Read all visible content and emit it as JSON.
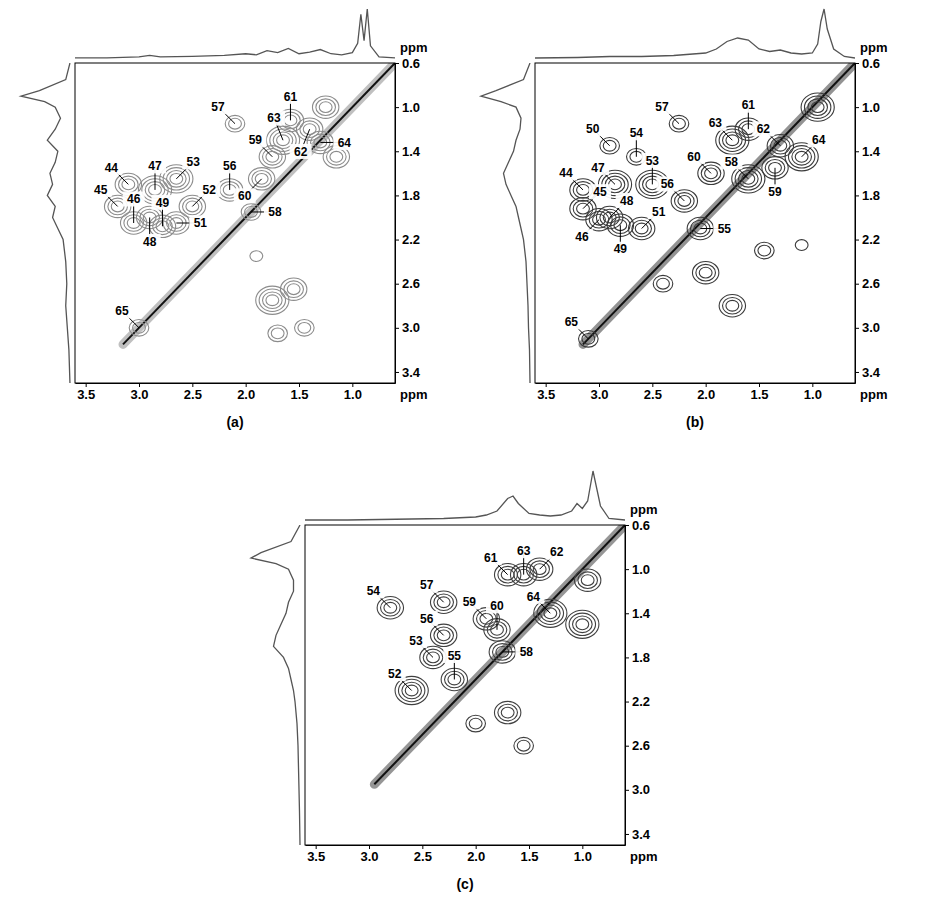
{
  "chart_data": [
    {
      "type": "contour",
      "label": "(a)",
      "x_label": "ppm",
      "y_label": "ppm",
      "xlim": [
        3.6,
        0.6
      ],
      "ylim": [
        0.6,
        3.5
      ],
      "xticks": [
        3.5,
        {
          "value": 3,
          "label": "3.0"
        },
        2.5,
        {
          "value": 2,
          "label": "2.0"
        },
        1.5,
        {
          "value": 1,
          "label": "1.0"
        }
      ],
      "yticks": [
        0.6,
        {
          "value": 1,
          "label": "1.0"
        },
        1.4,
        1.8,
        2.2,
        2.6,
        {
          "value": 3,
          "label": "3.0"
        },
        3.4
      ],
      "color": "#8c8c8c",
      "diagonal": [
        3.15,
        0.6
      ],
      "peaks": [
        {
          "label": "44",
          "x": 3.1,
          "y": 1.7,
          "intensity": 3
        },
        {
          "label": "45",
          "x": 3.2,
          "y": 1.9,
          "intensity": 3
        },
        {
          "label": "46",
          "x": 3.05,
          "y": 2.05,
          "intensity": 3
        },
        {
          "label": "47",
          "x": 2.85,
          "y": 1.75,
          "intensity": 4
        },
        {
          "label": "48",
          "x": 2.9,
          "y": 2.0,
          "intensity": 3
        },
        {
          "label": "49",
          "x": 2.78,
          "y": 2.08,
          "intensity": 3
        },
        {
          "label": "53",
          "x": 2.65,
          "y": 1.65,
          "intensity": 4
        },
        {
          "label": "52",
          "x": 2.5,
          "y": 1.9,
          "intensity": 3
        },
        {
          "label": "51",
          "x": 2.65,
          "y": 2.05,
          "intensity": 3
        },
        {
          "label": "57",
          "x": 2.1,
          "y": 1.15,
          "intensity": 2
        },
        {
          "label": "56",
          "x": 2.15,
          "y": 1.75,
          "intensity": 3
        },
        {
          "label": "60",
          "x": 1.85,
          "y": 1.65,
          "intensity": 3
        },
        {
          "label": "59",
          "x": 1.75,
          "y": 1.45,
          "intensity": 3
        },
        {
          "label": "58",
          "x": 1.95,
          "y": 1.95,
          "intensity": 2
        },
        {
          "label": "63",
          "x": 1.65,
          "y": 1.3,
          "intensity": 4
        },
        {
          "label": "61",
          "x": 1.58,
          "y": 1.12,
          "intensity": 3
        },
        {
          "label": "62",
          "x": 1.4,
          "y": 1.2,
          "intensity": 3
        },
        {
          "label": "64",
          "x": 1.3,
          "y": 1.32,
          "intensity": 3
        },
        {
          "label": "65",
          "x": 3.0,
          "y": 3.0,
          "intensity": 2
        }
      ],
      "unlabeled_peaks": [
        {
          "x": 1.75,
          "y": 2.75,
          "intensity": 4
        },
        {
          "x": 1.55,
          "y": 2.65,
          "intensity": 3
        },
        {
          "x": 1.7,
          "y": 3.05,
          "intensity": 2
        },
        {
          "x": 1.45,
          "y": 3.0,
          "intensity": 2
        },
        {
          "x": 1.25,
          "y": 1.0,
          "intensity": 3
        },
        {
          "x": 1.15,
          "y": 1.45,
          "intensity": 3
        },
        {
          "x": 1.9,
          "y": 2.35,
          "intensity": 1
        }
      ],
      "projection_top": {
        "x": [
          3.6,
          3.3,
          3.0,
          2.9,
          2.8,
          2.5,
          2.2,
          2.0,
          1.9,
          1.8,
          1.7,
          1.6,
          1.5,
          1.4,
          1.3,
          1.2,
          1.1,
          1.0,
          0.95,
          0.92,
          0.89,
          0.86,
          0.83,
          0.75,
          0.6
        ],
        "values": [
          0.02,
          0.02,
          0.04,
          0.07,
          0.04,
          0.05,
          0.07,
          0.1,
          0.08,
          0.16,
          0.12,
          0.2,
          0.1,
          0.13,
          0.18,
          0.1,
          0.08,
          0.12,
          0.3,
          0.85,
          0.35,
          0.95,
          0.25,
          0.04,
          0.02
        ]
      },
      "projection_left": {
        "y": [
          0.6,
          0.75,
          0.85,
          0.9,
          0.95,
          1.0,
          1.1,
          1.2,
          1.3,
          1.4,
          1.5,
          1.6,
          1.7,
          1.8,
          1.9,
          2.0,
          2.1,
          2.2,
          2.4,
          2.6,
          2.8,
          3.0,
          3.2,
          3.5
        ],
        "values": [
          0.02,
          0.1,
          0.6,
          0.95,
          0.5,
          0.3,
          0.2,
          0.3,
          0.45,
          0.25,
          0.3,
          0.4,
          0.35,
          0.45,
          0.3,
          0.35,
          0.25,
          0.15,
          0.1,
          0.08,
          0.1,
          0.07,
          0.04,
          0.02
        ]
      }
    },
    {
      "type": "contour",
      "label": "(b)",
      "x_label": "ppm",
      "y_label": "ppm",
      "xlim": [
        3.6,
        0.6
      ],
      "ylim": [
        0.6,
        3.5
      ],
      "xticks": [
        3.5,
        {
          "value": 3,
          "label": "3.0"
        },
        2.5,
        {
          "value": 2,
          "label": "2.0"
        },
        1.5,
        {
          "value": 1,
          "label": "1.0"
        }
      ],
      "yticks": [
        0.6,
        {
          "value": 1,
          "label": "1.0"
        },
        1.4,
        1.8,
        2.2,
        2.6,
        {
          "value": 3,
          "label": "3.0"
        },
        3.4
      ],
      "color": "#3a3a3a",
      "diagonal": [
        3.15,
        0.6
      ],
      "peaks": [
        {
          "label": "50",
          "x": 2.9,
          "y": 1.35,
          "intensity": 2
        },
        {
          "label": "44",
          "x": 3.15,
          "y": 1.75,
          "intensity": 3
        },
        {
          "label": "45",
          "x": 3.15,
          "y": 1.92,
          "intensity": 3
        },
        {
          "label": "46",
          "x": 3.0,
          "y": 2.02,
          "intensity": 3
        },
        {
          "label": "47",
          "x": 2.85,
          "y": 1.7,
          "intensity": 4
        },
        {
          "label": "48",
          "x": 2.9,
          "y": 2.0,
          "intensity": 3
        },
        {
          "label": "49",
          "x": 2.8,
          "y": 2.07,
          "intensity": 3
        },
        {
          "label": "54",
          "x": 2.65,
          "y": 1.45,
          "intensity": 2
        },
        {
          "label": "53",
          "x": 2.5,
          "y": 1.7,
          "intensity": 4
        },
        {
          "label": "51",
          "x": 2.6,
          "y": 2.1,
          "intensity": 3
        },
        {
          "label": "57",
          "x": 2.25,
          "y": 1.15,
          "intensity": 2
        },
        {
          "label": "60",
          "x": 1.95,
          "y": 1.6,
          "intensity": 3
        },
        {
          "label": "56",
          "x": 2.2,
          "y": 1.85,
          "intensity": 3
        },
        {
          "label": "55",
          "x": 2.05,
          "y": 2.1,
          "intensity": 3
        },
        {
          "label": "63",
          "x": 1.75,
          "y": 1.3,
          "intensity": 4
        },
        {
          "label": "61",
          "x": 1.6,
          "y": 1.2,
          "intensity": 3
        },
        {
          "label": "62",
          "x": 1.3,
          "y": 1.35,
          "intensity": 3
        },
        {
          "label": "64",
          "x": 1.1,
          "y": 1.45,
          "intensity": 4
        },
        {
          "label": "59",
          "x": 1.35,
          "y": 1.55,
          "intensity": 3
        },
        {
          "label": "58",
          "x": 1.6,
          "y": 1.65,
          "intensity": 4
        },
        {
          "label": "65",
          "x": 3.1,
          "y": 3.1,
          "intensity": 2
        }
      ],
      "unlabeled_peaks": [
        {
          "x": 2.0,
          "y": 2.5,
          "intensity": 3
        },
        {
          "x": 1.75,
          "y": 2.8,
          "intensity": 3
        },
        {
          "x": 1.45,
          "y": 2.3,
          "intensity": 2
        },
        {
          "x": 0.95,
          "y": 1.0,
          "intensity": 4
        },
        {
          "x": 1.1,
          "y": 2.25,
          "intensity": 1
        },
        {
          "x": 2.4,
          "y": 2.6,
          "intensity": 2
        }
      ],
      "projection_top": {
        "x": [
          3.6,
          3.2,
          2.9,
          2.6,
          2.3,
          2.0,
          1.9,
          1.8,
          1.7,
          1.6,
          1.5,
          1.4,
          1.3,
          1.2,
          1.1,
          1.0,
          0.95,
          0.92,
          0.89,
          0.86,
          0.8,
          0.7,
          0.6
        ],
        "values": [
          0.02,
          0.03,
          0.05,
          0.05,
          0.07,
          0.12,
          0.2,
          0.35,
          0.42,
          0.38,
          0.2,
          0.15,
          0.18,
          0.12,
          0.1,
          0.12,
          0.3,
          0.75,
          1.0,
          0.6,
          0.2,
          0.05,
          0.02
        ]
      },
      "projection_left": {
        "y": [
          0.6,
          0.75,
          0.85,
          0.9,
          0.95,
          1.0,
          1.1,
          1.2,
          1.3,
          1.4,
          1.5,
          1.6,
          1.7,
          1.8,
          1.9,
          2.0,
          2.1,
          2.2,
          2.4,
          2.6,
          2.8,
          3.0,
          3.2,
          3.5
        ],
        "values": [
          0.02,
          0.15,
          0.7,
          1.0,
          0.6,
          0.3,
          0.2,
          0.22,
          0.3,
          0.35,
          0.45,
          0.55,
          0.5,
          0.4,
          0.3,
          0.25,
          0.2,
          0.15,
          0.1,
          0.08,
          0.06,
          0.05,
          0.03,
          0.02
        ]
      }
    },
    {
      "type": "contour",
      "label": "(c)",
      "x_label": "ppm",
      "y_label": "ppm",
      "xlim": [
        3.6,
        0.6
      ],
      "ylim": [
        0.6,
        3.5
      ],
      "xticks": [
        3.5,
        {
          "value": 3,
          "label": "3.0"
        },
        2.5,
        {
          "value": 2,
          "label": "2.0"
        },
        1.5,
        {
          "value": 1,
          "label": "1.0"
        }
      ],
      "yticks": [
        0.6,
        {
          "value": 1,
          "label": "1.0"
        },
        1.4,
        1.8,
        2.2,
        2.6,
        {
          "value": 3,
          "label": "3.0"
        },
        3.4
      ],
      "color": "#404040",
      "diagonal": [
        2.95,
        0.6
      ],
      "peaks": [
        {
          "label": "54",
          "x": 2.8,
          "y": 1.35,
          "intensity": 3
        },
        {
          "label": "57",
          "x": 2.3,
          "y": 1.3,
          "intensity": 3
        },
        {
          "label": "59",
          "x": 1.9,
          "y": 1.45,
          "intensity": 3
        },
        {
          "label": "60",
          "x": 1.8,
          "y": 1.55,
          "intensity": 3
        },
        {
          "label": "61",
          "x": 1.7,
          "y": 1.05,
          "intensity": 3
        },
        {
          "label": "63",
          "x": 1.55,
          "y": 1.05,
          "intensity": 3
        },
        {
          "label": "62",
          "x": 1.4,
          "y": 1.0,
          "intensity": 3
        },
        {
          "label": "64",
          "x": 1.3,
          "y": 1.4,
          "intensity": 4
        },
        {
          "label": "56",
          "x": 2.3,
          "y": 1.6,
          "intensity": 3
        },
        {
          "label": "53",
          "x": 2.4,
          "y": 1.8,
          "intensity": 3
        },
        {
          "label": "55",
          "x": 2.2,
          "y": 2.0,
          "intensity": 3
        },
        {
          "label": "52",
          "x": 2.6,
          "y": 2.1,
          "intensity": 4
        },
        {
          "label": "58",
          "x": 1.75,
          "y": 1.75,
          "intensity": 3
        }
      ],
      "unlabeled_peaks": [
        {
          "x": 1.7,
          "y": 2.3,
          "intensity": 3
        },
        {
          "x": 1.55,
          "y": 2.6,
          "intensity": 2
        },
        {
          "x": 2.0,
          "y": 2.4,
          "intensity": 2
        },
        {
          "x": 1.0,
          "y": 1.5,
          "intensity": 4
        },
        {
          "x": 0.95,
          "y": 1.1,
          "intensity": 3
        }
      ],
      "projection_top": {
        "x": [
          3.6,
          3.2,
          2.9,
          2.6,
          2.3,
          2.0,
          1.9,
          1.8,
          1.7,
          1.65,
          1.6,
          1.5,
          1.4,
          1.3,
          1.2,
          1.1,
          1.05,
          1.0,
          0.95,
          0.9,
          0.86,
          0.83,
          0.75,
          0.6
        ],
        "values": [
          0.02,
          0.02,
          0.03,
          0.04,
          0.05,
          0.08,
          0.12,
          0.2,
          0.45,
          0.5,
          0.35,
          0.15,
          0.12,
          0.1,
          0.12,
          0.2,
          0.35,
          0.25,
          0.4,
          1.0,
          0.6,
          0.3,
          0.05,
          0.02
        ]
      },
      "projection_left": {
        "y": [
          0.6,
          0.75,
          0.85,
          0.9,
          0.95,
          1.0,
          1.1,
          1.2,
          1.3,
          1.4,
          1.5,
          1.6,
          1.7,
          1.8,
          1.9,
          2.0,
          2.1,
          2.2,
          2.4,
          2.6,
          2.8,
          3.0,
          3.2,
          3.5
        ],
        "values": [
          0.02,
          0.2,
          0.8,
          1.0,
          0.5,
          0.25,
          0.15,
          0.15,
          0.25,
          0.3,
          0.4,
          0.5,
          0.55,
          0.35,
          0.25,
          0.2,
          0.15,
          0.12,
          0.08,
          0.06,
          0.05,
          0.04,
          0.03,
          0.02
        ]
      }
    }
  ]
}
